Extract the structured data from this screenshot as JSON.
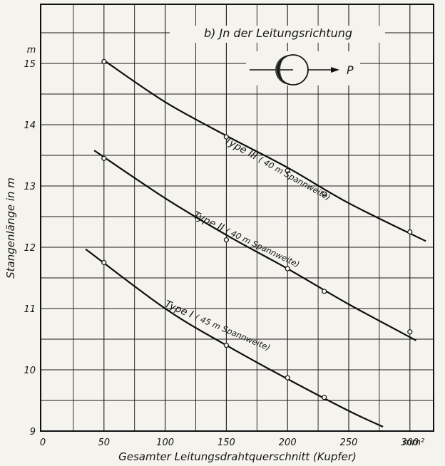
{
  "chart_data": {
    "type": "line",
    "title": "b) Jn der Leitungsrichtung",
    "symbol_label": "P",
    "xlabel": "Gesamter Leitungsdrahtquerschnitt (Kupfer)",
    "x_unit": "mm²",
    "ylabel": "Stangenlänge in m",
    "y_unit": "m",
    "xlim": [
      0,
      325
    ],
    "ylim": [
      9,
      16
    ],
    "x_ticks": [
      0,
      50,
      100,
      150,
      200,
      250,
      300
    ],
    "x_tick_labels": [
      "0",
      "50",
      "100",
      "150",
      "200",
      "250",
      "300"
    ],
    "y_ticks": [
      9,
      10,
      11,
      12,
      13,
      14,
      15
    ],
    "y_tick_labels": [
      "9",
      "10",
      "11",
      "12",
      "13",
      "14",
      "15"
    ],
    "grid": true,
    "series": [
      {
        "name": "Type III",
        "label_main": "Type III",
        "label_detail": "( 40 m Spannweite)",
        "x": [
          50,
          150,
          200,
          230,
          300
        ],
        "y": [
          15.03,
          13.8,
          13.25,
          12.87,
          12.25
        ],
        "curve_x": [
          50,
          100,
          150,
          200,
          250,
          313
        ],
        "curve_y": [
          15.05,
          14.37,
          13.82,
          13.3,
          12.72,
          12.1
        ]
      },
      {
        "name": "Type II",
        "label_main": "Type II",
        "label_detail": "( 40 m Spannweite)",
        "x": [
          50,
          150,
          200,
          230,
          300
        ],
        "y": [
          13.45,
          12.12,
          11.65,
          11.28,
          10.62
        ],
        "curve_x": [
          42,
          100,
          150,
          200,
          250,
          305
        ],
        "curve_y": [
          13.58,
          12.8,
          12.2,
          11.65,
          11.07,
          10.48
        ]
      },
      {
        "name": "Type I",
        "label_main": "Type I",
        "label_detail": "( 45 m Spannweite)",
        "x": [
          50,
          150,
          200,
          230
        ],
        "y": [
          11.75,
          10.4,
          9.87,
          9.55
        ],
        "curve_x": [
          35,
          100,
          150,
          200,
          250,
          278
        ],
        "curve_y": [
          11.97,
          11.0,
          10.4,
          9.85,
          9.33,
          9.07
        ]
      }
    ]
  }
}
